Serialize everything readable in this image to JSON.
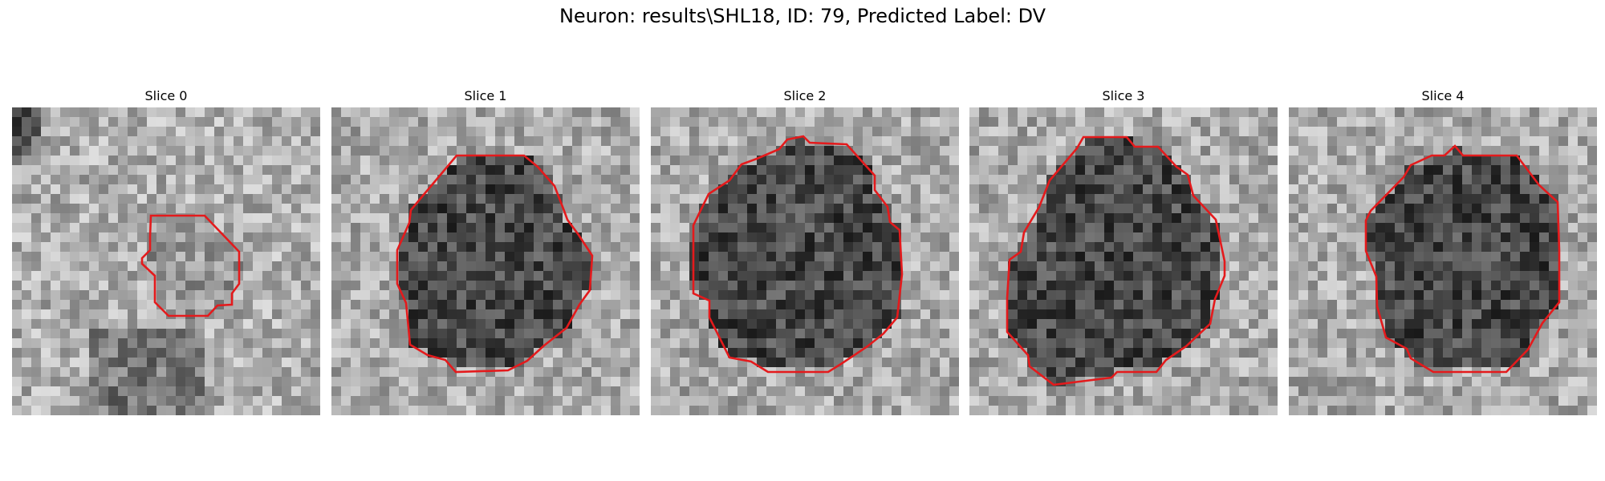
{
  "title": "Neuron: results\\SHL18, ID: 79, Predicted Label: DV",
  "outline_color": "#e41a1c",
  "panels": [
    {
      "label": "Slice 0"
    },
    {
      "label": "Slice 1"
    },
    {
      "label": "Slice 2"
    },
    {
      "label": "Slice 3"
    },
    {
      "label": "Slice 4"
    }
  ]
}
